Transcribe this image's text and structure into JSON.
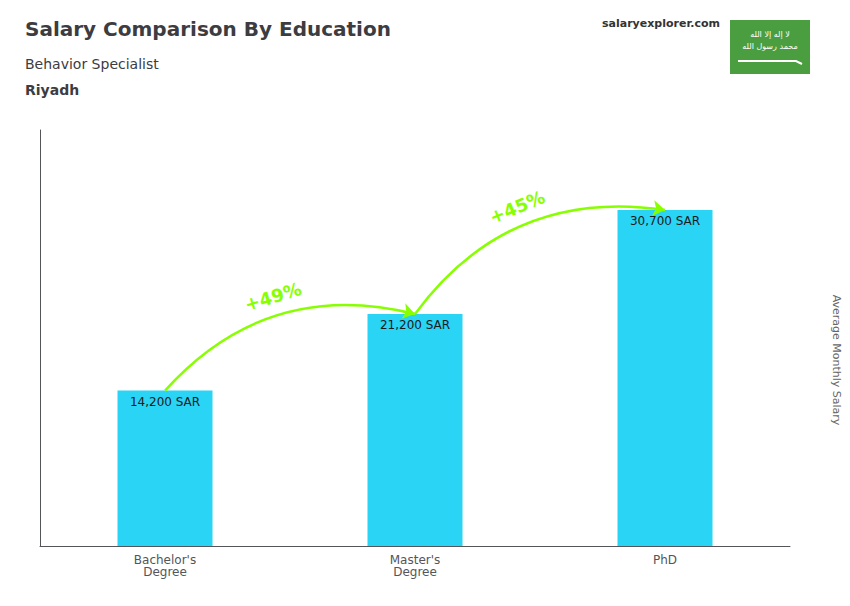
{
  "chart_data": {
    "type": "bar",
    "title": "Salary Comparison By Education",
    "subtitle": [
      "Behavior Specialist",
      "Riyadh"
    ],
    "categories": [
      "Bachelor's\nDegree",
      "Master's\nDegree",
      "PhD"
    ],
    "values": [
      14200,
      21200,
      30700
    ],
    "value_labels": [
      "14,200 SAR",
      "21,200 SAR",
      "30,700 SAR"
    ],
    "data_labels": true,
    "color": "#29d4f5",
    "ylim": [
      0,
      38000
    ],
    "ylabel": "Average Monthly Salary",
    "tick_labels": "x",
    "grid": false,
    "annotations": [
      {
        "text": "+49%",
        "from": "Bachelor's\nDegree",
        "to": "Master's\nDegree",
        "color": "#88ff00"
      },
      {
        "text": "+45%",
        "from": "Master's\nDegree",
        "to": "PhD",
        "color": "#88ff00"
      }
    ],
    "watermark": "salaryexplorer.com",
    "flag": {
      "color": "#4a9e3f",
      "text_color": "#ffffff",
      "texts": [
        "لا إله إلا الله",
        "محمد رسول الله"
      ]
    }
  }
}
